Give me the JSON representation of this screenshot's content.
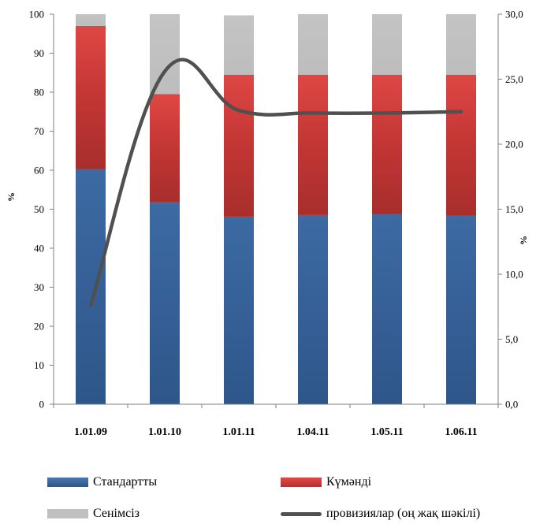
{
  "chart_data": {
    "type": "bar",
    "stacked": true,
    "categories": [
      "1.01.09",
      "1.01.10",
      "1.01.11",
      "1.04.11",
      "1.05.11",
      "1.06.11"
    ],
    "series": [
      {
        "name": "Стандартты",
        "values": [
          60.3,
          51.8,
          48.1,
          48.5,
          48.7,
          48.3
        ],
        "color": "#335d94"
      },
      {
        "name": "Күмәнді",
        "values": [
          36.7,
          27.7,
          36.4,
          36.0,
          35.8,
          36.2
        ],
        "color": "#d03c3a"
      },
      {
        "name": "Сенімсіз",
        "values": [
          3.0,
          20.5,
          15.2,
          15.5,
          15.5,
          15.5
        ],
        "color": "#c0c0c0"
      },
      {
        "name": "провизиялар (оң жақ шәкілі)",
        "type": "line",
        "axis": "right",
        "values": [
          7.6,
          25.6,
          22.6,
          22.4,
          22.4,
          22.5
        ],
        "color": "#505050"
      }
    ],
    "y_left": {
      "label": "%",
      "ylim": [
        0,
        100
      ],
      "ticks": [
        "0",
        "10",
        "20",
        "30",
        "40",
        "50",
        "60",
        "70",
        "80",
        "90",
        "100"
      ]
    },
    "y_right": {
      "label": "%",
      "ylim": [
        0,
        30
      ],
      "ticks": [
        "0,0",
        "5,0",
        "10,0",
        "15,0",
        "20,0",
        "25,0",
        "30,0"
      ]
    },
    "grid": false,
    "legend_position": "bottom"
  }
}
